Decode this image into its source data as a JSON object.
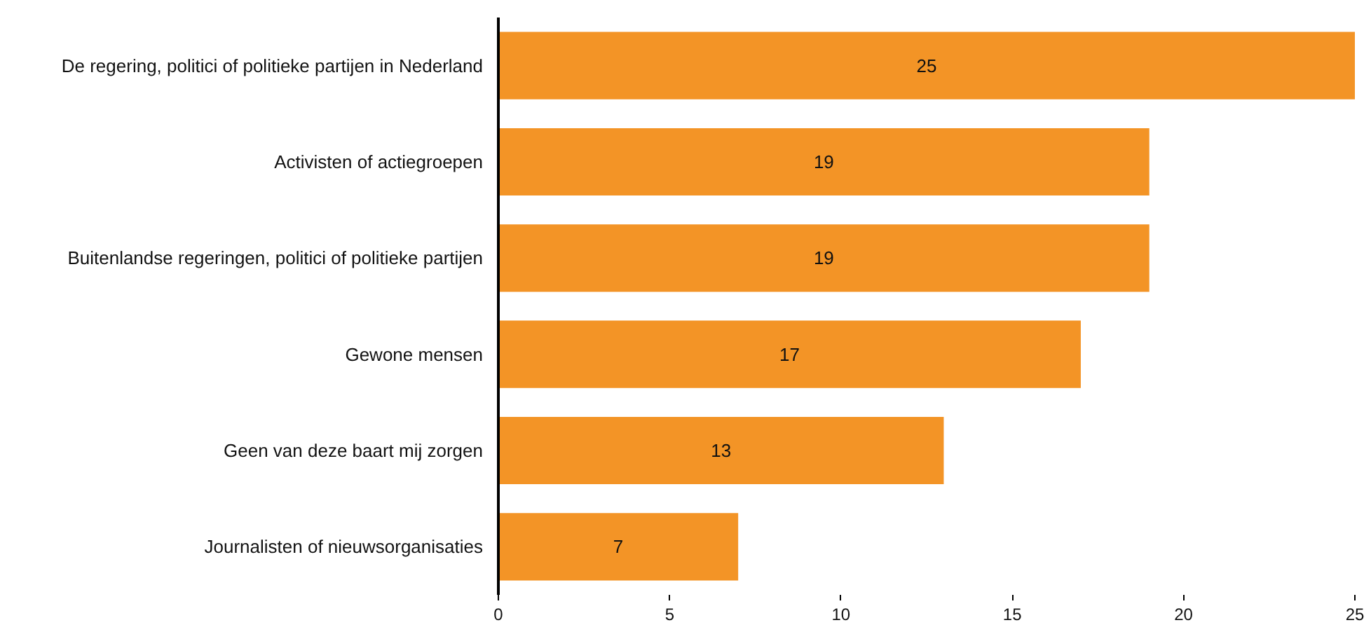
{
  "chart_data": {
    "type": "bar",
    "orientation": "horizontal",
    "categories": [
      "De regering, politici of politieke partijen in Nederland",
      "Activisten of actiegroepen",
      "Buitenlandse regeringen, politici of politieke partijen",
      "Gewone mensen",
      "Geen van deze baart mij zorgen",
      "Journalisten of nieuwsorganisaties"
    ],
    "values": [
      25,
      19,
      19,
      17,
      13,
      7
    ],
    "color": "#f39426",
    "xlim": [
      0,
      25
    ],
    "xticks": [
      0,
      5,
      10,
      15,
      20,
      25
    ],
    "grid": false,
    "data_labels": true
  }
}
